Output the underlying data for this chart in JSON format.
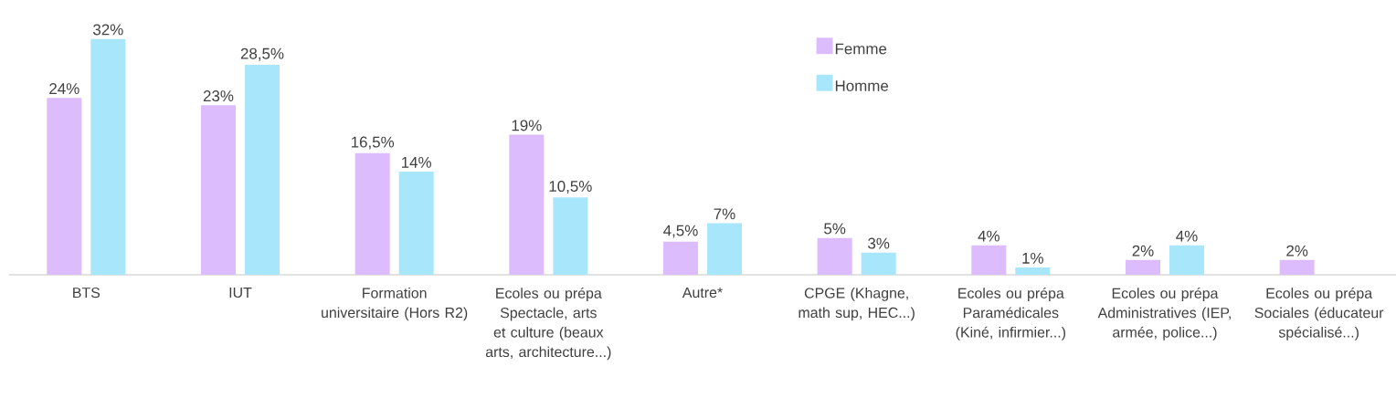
{
  "chart_data": {
    "type": "bar",
    "categories": [
      "BTS",
      "IUT",
      "Formation universitaire (Hors R2)",
      "Ecoles ou prépa Spectacle, arts et culture (beaux arts, architecture...)",
      "Autre*",
      "CPGE (Khagne, math sup, HEC...)",
      "Ecoles ou prépa Paramédicales (Kiné, infirmier...)",
      "Ecoles ou prépa Administratives (IEP, armée, police...)",
      "Ecoles ou prépa Sociales (éducateur spécialisé...)"
    ],
    "series": [
      {
        "name": "Femme",
        "color": "#dcbcfc",
        "values": [
          24,
          23,
          16.5,
          19,
          4.5,
          5,
          4,
          2,
          2
        ],
        "value_labels": [
          "24%",
          "23%",
          "16,5%",
          "19%",
          "4,5%",
          "5%",
          "4%",
          "2%",
          "2%"
        ]
      },
      {
        "name": "Homme",
        "color": "#a8e6fb",
        "values": [
          32,
          28.5,
          14,
          10.5,
          7,
          3,
          1,
          4,
          null
        ],
        "value_labels": [
          "32%",
          "28,5%",
          "14%",
          "10,5%",
          "7%",
          "3%",
          "1%",
          "4%",
          null
        ]
      }
    ],
    "legend": "top"
  }
}
